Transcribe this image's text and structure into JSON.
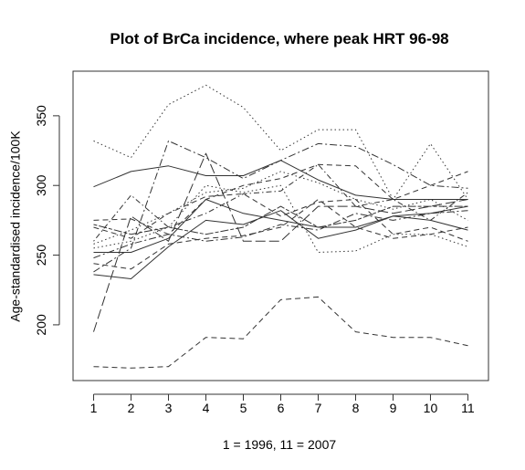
{
  "chart_data": {
    "type": "line",
    "title": "Plot of BrCa incidence, where peak HRT 96-98",
    "xlabel": "1 = 1996, 11 = 2007",
    "ylabel": "Age-standardised incidence/100K",
    "x": [
      1,
      2,
      3,
      4,
      5,
      6,
      7,
      8,
      9,
      10,
      11
    ],
    "xlim": [
      0.45,
      11.55
    ],
    "ylim": [
      160,
      382
    ],
    "x_ticks": [
      "1",
      "2",
      "3",
      "4",
      "5",
      "6",
      "7",
      "8",
      "9",
      "10",
      "11"
    ],
    "y_ticks": [
      "200",
      "250",
      "300",
      "350"
    ],
    "grid": false,
    "legend": "none",
    "series": [
      {
        "style": "dotted",
        "values": [
          332,
          320,
          358,
          372,
          356,
          325,
          340,
          340,
          290,
          330,
          290
        ]
      },
      {
        "style": "solid",
        "values": [
          299,
          310,
          314,
          307,
          307,
          318,
          304,
          293,
          290,
          290,
          290
        ]
      },
      {
        "style": "dashdot",
        "values": [
          238,
          255,
          332,
          320,
          305,
          318,
          330,
          328,
          315,
          300,
          298
        ]
      },
      {
        "style": "longdash",
        "values": [
          195,
          278,
          260,
          323,
          260,
          260,
          285,
          285,
          280,
          285,
          290
        ]
      },
      {
        "style": "solid",
        "values": [
          252,
          252,
          262,
          290,
          280,
          275,
          270,
          270,
          278,
          275,
          268
        ]
      },
      {
        "style": "solid",
        "values": [
          236,
          233,
          256,
          275,
          272,
          282,
          262,
          268,
          278,
          280,
          285
        ]
      },
      {
        "style": "dashed",
        "values": [
          275,
          276,
          265,
          290,
          300,
          305,
          315,
          314,
          290,
          300,
          310
        ]
      },
      {
        "style": "dotdash",
        "values": [
          260,
          293,
          270,
          280,
          294,
          296,
          315,
          285,
          290,
          275,
          295
        ]
      },
      {
        "style": "dotted",
        "values": [
          255,
          260,
          270,
          300,
          295,
          300,
          252,
          253,
          265,
          265,
          256
        ]
      },
      {
        "style": "dashed",
        "values": [
          270,
          262,
          280,
          292,
          294,
          278,
          288,
          290,
          265,
          270,
          260
        ]
      },
      {
        "style": "dashdot",
        "values": [
          248,
          258,
          265,
          260,
          263,
          272,
          268,
          280,
          275,
          280,
          282
        ]
      },
      {
        "style": "twodash",
        "values": [
          272,
          265,
          270,
          265,
          270,
          285,
          270,
          275,
          285,
          285,
          285
        ]
      },
      {
        "style": "dotted",
        "values": [
          258,
          268,
          280,
          295,
          298,
          310,
          302,
          290,
          283,
          290,
          275
        ]
      },
      {
        "style": "dashed",
        "values": [
          244,
          240,
          258,
          262,
          264,
          270,
          290,
          270,
          262,
          265,
          270
        ]
      },
      {
        "style": "dashed",
        "values": [
          170,
          169,
          170,
          191,
          190,
          218,
          220,
          195,
          191,
          191,
          185
        ]
      }
    ]
  }
}
